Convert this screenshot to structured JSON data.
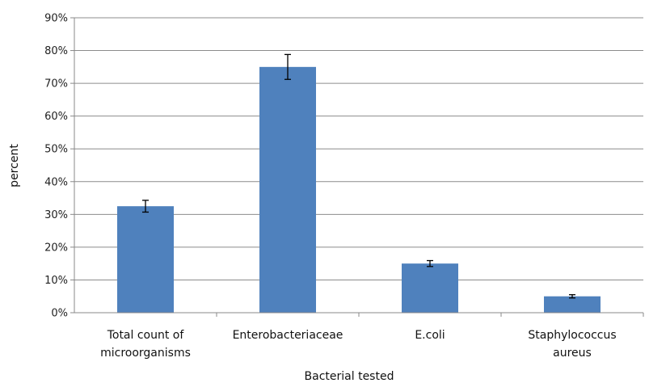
{
  "chart_data": {
    "type": "bar",
    "title": "",
    "xlabel": "Bacterial tested",
    "ylabel": "percent",
    "categories": [
      [
        "Total count of",
        "microorganisms"
      ],
      [
        "Enterobacteriaceae"
      ],
      [
        "E.coli"
      ],
      [
        "Staphylococcus",
        "aureus"
      ]
    ],
    "values": [
      32.5,
      75,
      15,
      5
    ],
    "errors": [
      1.8,
      3.8,
      0.9,
      0.5
    ],
    "ylim": [
      0,
      90
    ],
    "yticks": [
      "0%",
      "10%",
      "20%",
      "30%",
      "40%",
      "50%",
      "60%",
      "70%",
      "80%",
      "90%"
    ],
    "grid": true,
    "legend": "none",
    "bar_color": "#4F81BD",
    "grid_color": "#8C8C8C",
    "error_bar_color": "#000000"
  }
}
